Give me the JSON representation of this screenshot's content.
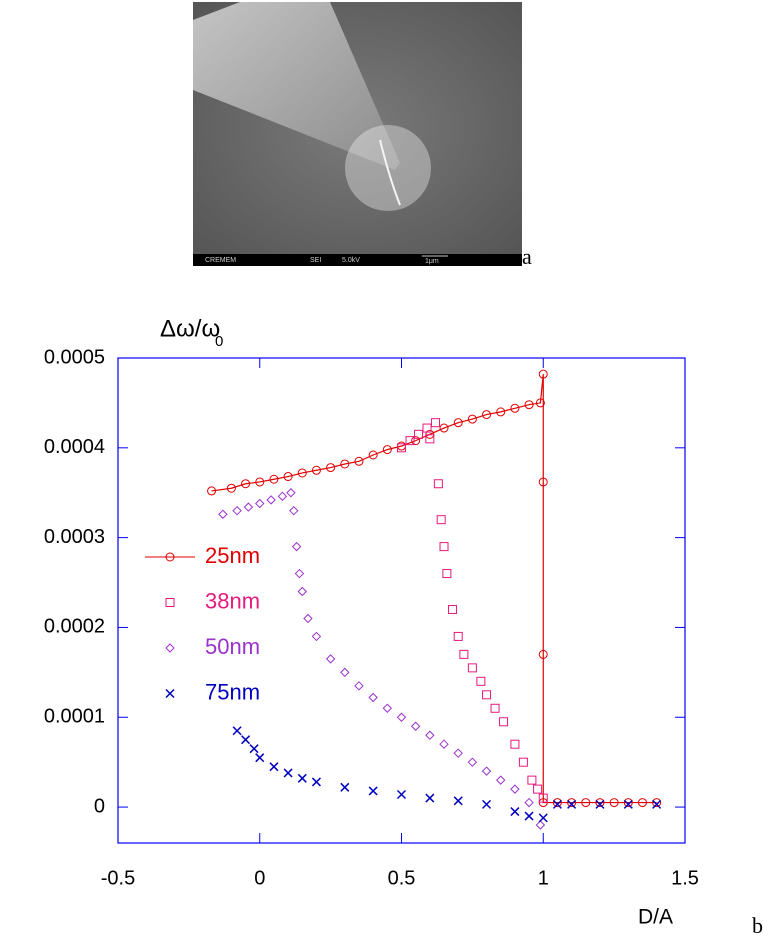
{
  "figure_a": {
    "panel_label": "a",
    "info_bar": [
      "CREMEM",
      "SEI",
      "5.0kV",
      "1μm"
    ]
  },
  "chart_data": {
    "type": "scatter",
    "y_label": "Δω/ω",
    "y_label_subscript": "0",
    "x_label": "D/A",
    "panel_label": "b",
    "xlim": [
      -0.5,
      1.5
    ],
    "xticks": [
      -0.5,
      0,
      0.5,
      1,
      1.5
    ],
    "ylim": [
      -4e-05,
      0.0005
    ],
    "yticks": [
      0,
      0.0001,
      0.0002,
      0.0003,
      0.0004,
      0.0005
    ],
    "legend": "left",
    "series": [
      {
        "name": "25nm",
        "color": "#e00000",
        "marker": "circle",
        "line": true,
        "x": [
          -0.17,
          -0.1,
          -0.05,
          0,
          0.05,
          0.1,
          0.15,
          0.2,
          0.25,
          0.3,
          0.35,
          0.4,
          0.45,
          0.5,
          0.55,
          0.6,
          0.65,
          0.7,
          0.75,
          0.8,
          0.85,
          0.9,
          0.95,
          0.99,
          1,
          1,
          1,
          1,
          1.05,
          1.1,
          1.15,
          1.2,
          1.25,
          1.3,
          1.35,
          1.4
        ],
        "values": [
          0.000352,
          0.000355,
          0.00036,
          0.000362,
          0.000365,
          0.000368,
          0.000372,
          0.000375,
          0.000378,
          0.000382,
          0.000385,
          0.000392,
          0.000398,
          0.000402,
          0.000408,
          0.000415,
          0.000422,
          0.000428,
          0.000432,
          0.000437,
          0.00044,
          0.000444,
          0.000448,
          0.00045,
          0.000482,
          0.000362,
          0.00017,
          5e-06,
          5e-06,
          5e-06,
          5e-06,
          5e-06,
          5e-06,
          5e-06,
          5e-06,
          5e-06
        ]
      },
      {
        "name": "38nm",
        "color": "#e8197d",
        "marker": "square",
        "line": false,
        "x": [
          0.5,
          0.53,
          0.56,
          0.59,
          0.62,
          0.6,
          0.63,
          0.64,
          0.65,
          0.66,
          0.68,
          0.7,
          0.72,
          0.75,
          0.78,
          0.8,
          0.83,
          0.86,
          0.9,
          0.93,
          0.96,
          0.98,
          1.0
        ],
        "values": [
          0.0004,
          0.000408,
          0.000415,
          0.000422,
          0.000428,
          0.00041,
          0.00036,
          0.00032,
          0.00029,
          0.00026,
          0.00022,
          0.00019,
          0.00017,
          0.000155,
          0.00014,
          0.000125,
          0.00011,
          9.5e-05,
          7e-05,
          5e-05,
          3e-05,
          2e-05,
          1e-05
        ]
      },
      {
        "name": "50nm",
        "color": "#9a32cd",
        "marker": "diamond",
        "line": false,
        "x": [
          -0.13,
          -0.08,
          -0.04,
          0,
          0.04,
          0.08,
          0.11,
          0.12,
          0.13,
          0.14,
          0.15,
          0.17,
          0.2,
          0.25,
          0.3,
          0.35,
          0.4,
          0.45,
          0.5,
          0.55,
          0.6,
          0.65,
          0.7,
          0.75,
          0.8,
          0.85,
          0.9,
          0.95,
          0.99
        ],
        "values": [
          0.000326,
          0.00033,
          0.000334,
          0.000338,
          0.000342,
          0.000346,
          0.00035,
          0.00033,
          0.00029,
          0.00026,
          0.00024,
          0.00021,
          0.00019,
          0.000165,
          0.00015,
          0.000135,
          0.000122,
          0.00011,
          0.0001,
          9e-05,
          8e-05,
          7e-05,
          6e-05,
          5e-05,
          4e-05,
          3e-05,
          2e-05,
          5e-06,
          -2e-05
        ]
      },
      {
        "name": "75nm",
        "color": "#0000c0",
        "marker": "x",
        "line": false,
        "x": [
          -0.08,
          -0.05,
          -0.02,
          0,
          0.05,
          0.1,
          0.15,
          0.2,
          0.3,
          0.4,
          0.5,
          0.6,
          0.7,
          0.8,
          0.9,
          0.95,
          1.0,
          1.05,
          1.1,
          1.2,
          1.3,
          1.4
        ],
        "values": [
          8.5e-05,
          7.5e-05,
          6.5e-05,
          5.5e-05,
          4.5e-05,
          3.8e-05,
          3.2e-05,
          2.8e-05,
          2.2e-05,
          1.8e-05,
          1.4e-05,
          1e-05,
          7e-06,
          3e-06,
          -5e-06,
          -1e-05,
          -1.2e-05,
          3e-06,
          3e-06,
          3e-06,
          3e-06,
          3e-06
        ]
      }
    ]
  }
}
